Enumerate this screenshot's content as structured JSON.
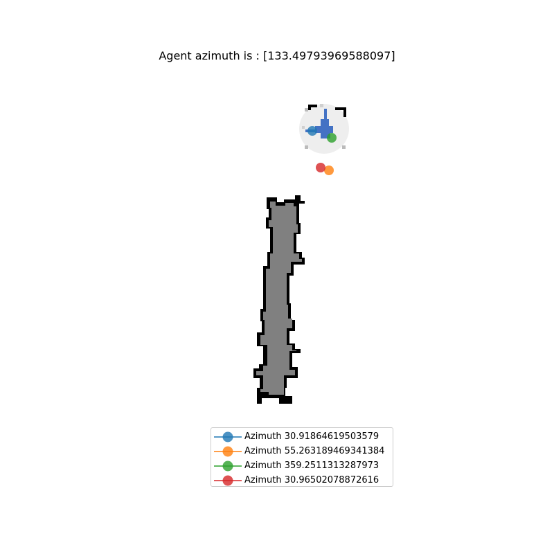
{
  "title": "Agent azimuth is : [133.49793969588097]",
  "colors": {
    "background": "#ffffff",
    "occupied": "#000000",
    "free": "#808080",
    "explored": "#eeeeee",
    "explored_edge": "#bbbbbb",
    "agent": "#4472c4",
    "series": [
      "#1f77b4",
      "#ff7f0e",
      "#2ca02c",
      "#d62728"
    ]
  },
  "legend": [
    {
      "label": "Azimuth 30.91864619503579",
      "color": "#1f77b4"
    },
    {
      "label": "Azimuth 55.263189469341384",
      "color": "#ff7f0e"
    },
    {
      "label": "Azimuth 359.2511313287973",
      "color": "#2ca02c"
    },
    {
      "label": "Azimuth 30.96502078872616",
      "color": "#d62728"
    }
  ]
}
